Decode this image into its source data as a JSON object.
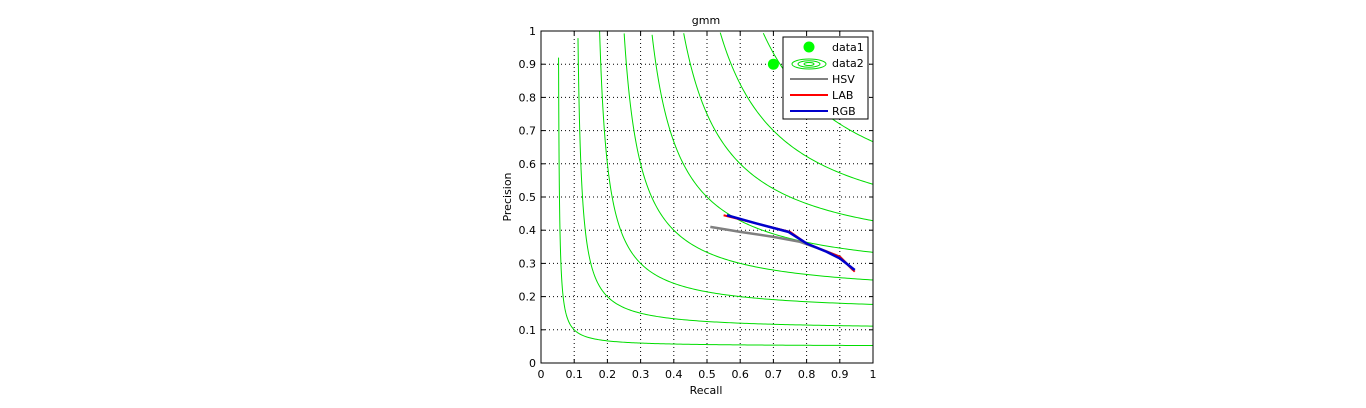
{
  "chart_data": {
    "type": "line",
    "title": "gmm",
    "xlabel": "Recall",
    "ylabel": "Precision",
    "xlim": [
      0,
      1
    ],
    "ylim": [
      0,
      1
    ],
    "xticks": [
      "0",
      "0.1",
      "0.2",
      "0.3",
      "0.4",
      "0.5",
      "0.6",
      "0.7",
      "0.8",
      "0.9",
      "1"
    ],
    "yticks": [
      "0",
      "0.1",
      "0.2",
      "0.3",
      "0.4",
      "0.5",
      "0.6",
      "0.7",
      "0.8",
      "0.9",
      "1"
    ],
    "grid": true,
    "legend_position": "top-right",
    "iso_f_contours": [
      0.1,
      0.2,
      0.3,
      0.4,
      0.5,
      0.6,
      0.7,
      0.8
    ],
    "series": [
      {
        "name": "data1",
        "kind": "marker",
        "color": "#00ff00",
        "points": [
          [
            0.7,
            0.9
          ]
        ]
      },
      {
        "name": "data2",
        "kind": "contour",
        "color": "#00dd00"
      },
      {
        "name": "HSV",
        "kind": "line",
        "color": "#808080",
        "points": [
          [
            0.51,
            0.41
          ],
          [
            0.6,
            0.395
          ],
          [
            0.7,
            0.38
          ],
          [
            0.78,
            0.365
          ],
          [
            0.85,
            0.34
          ],
          [
            0.9,
            0.32
          ],
          [
            0.94,
            0.28
          ]
        ]
      },
      {
        "name": "LAB",
        "kind": "line",
        "color": "#ff0000",
        "points": [
          [
            0.55,
            0.445
          ],
          [
            0.65,
            0.42
          ],
          [
            0.75,
            0.395
          ],
          [
            0.8,
            0.36
          ],
          [
            0.85,
            0.34
          ],
          [
            0.9,
            0.32
          ],
          [
            0.945,
            0.275
          ]
        ]
      },
      {
        "name": "RGB",
        "kind": "line",
        "color": "#0000cc",
        "points": [
          [
            0.56,
            0.445
          ],
          [
            0.65,
            0.42
          ],
          [
            0.745,
            0.395
          ],
          [
            0.8,
            0.36
          ],
          [
            0.86,
            0.335
          ],
          [
            0.9,
            0.315
          ],
          [
            0.945,
            0.28
          ]
        ]
      }
    ]
  }
}
